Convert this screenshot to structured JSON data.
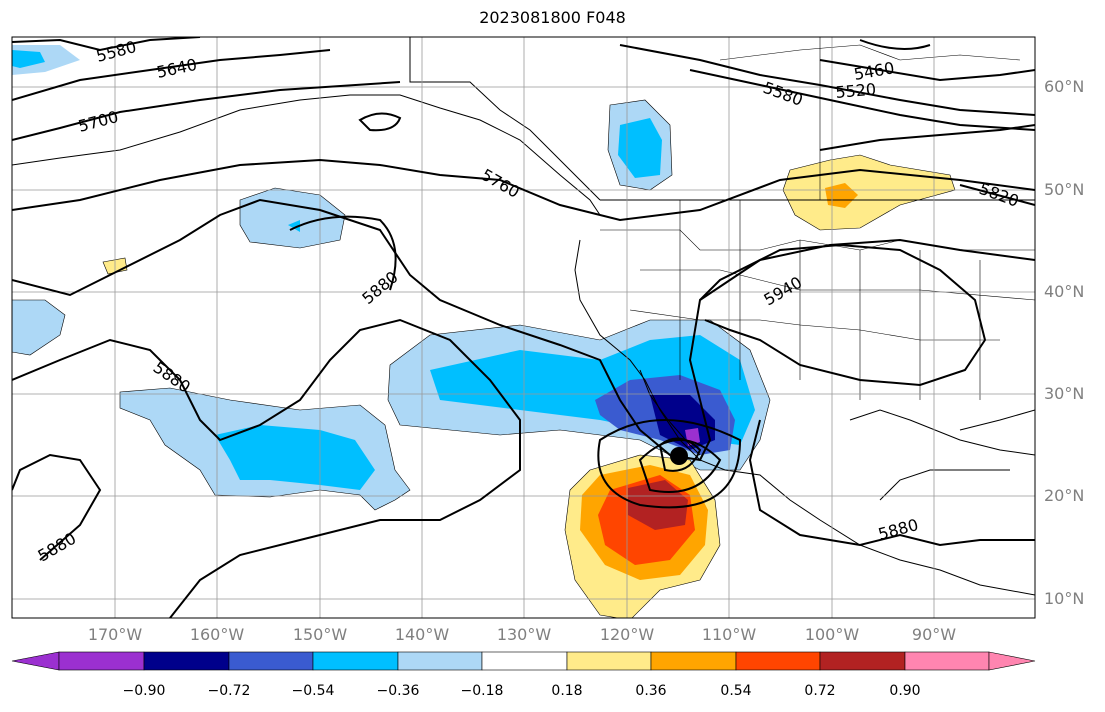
{
  "title": "2023081800 F048",
  "lat_labels": [
    "60°N",
    "50°N",
    "40°N",
    "30°N",
    "20°N",
    "10°N"
  ],
  "lon_labels": [
    "170°W",
    "160°W",
    "150°W",
    "140°W",
    "130°W",
    "120°W",
    "110°W",
    "100°W",
    "90°W"
  ],
  "contour_labels": [
    "5580",
    "5640",
    "5700",
    "5760",
    "5880",
    "5880",
    "5880",
    "5460",
    "5520",
    "5580",
    "5820",
    "5940",
    "5880"
  ],
  "colorbar": {
    "ticks": [
      "−0.90",
      "−0.72",
      "−0.54",
      "−0.36",
      "−0.18",
      "0.18",
      "0.36",
      "0.54",
      "0.72",
      "0.90"
    ],
    "colors": [
      "#9b30d0",
      "#00008b",
      "#3a5bd0",
      "#00bfff",
      "#add8f6",
      "#ffffff",
      "#ffeb8a",
      "#ffa500",
      "#ff4500",
      "#b22222",
      "#ff85b0"
    ]
  },
  "marker": "storm-center"
}
